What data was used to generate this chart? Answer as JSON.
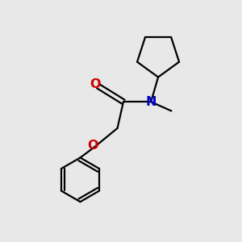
{
  "bg_color": "#e8e8e8",
  "bond_color": "#000000",
  "N_color": "#0000cc",
  "O_color": "#cc0000",
  "line_width": 1.6,
  "font_size": 11.5,
  "fig_size": [
    3.0,
    3.0
  ],
  "dpi": 100,
  "xlim": [
    0,
    10
  ],
  "ylim": [
    0,
    10
  ]
}
